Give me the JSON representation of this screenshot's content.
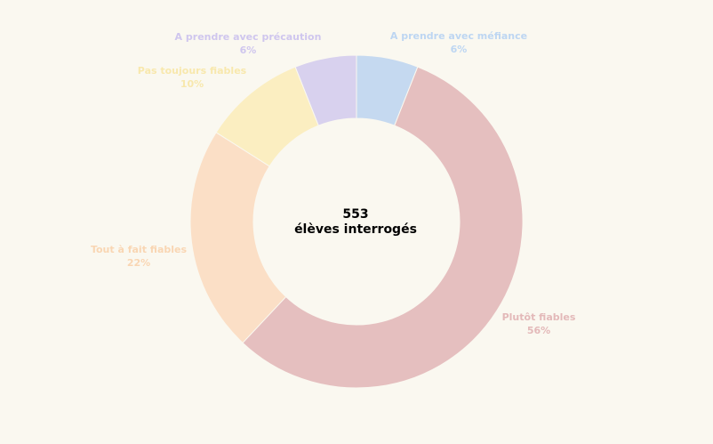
{
  "chart_data": {
    "type": "pie",
    "variant": "donut",
    "center": {
      "value": "553",
      "caption": "élèves interrogés"
    },
    "slices": [
      {
        "label": "A prendre avec méfiance",
        "value": 6,
        "display": "6%",
        "color": "#c5d9f0",
        "label_color": "#bdd6f2"
      },
      {
        "label": "Plutôt fiables",
        "value": 56,
        "display": "56%",
        "color": "#e5bfbf",
        "label_color": "#e3b9b9"
      },
      {
        "label": "Tout à fait fiables",
        "value": 22,
        "display": "22%",
        "color": "#fbdfc6",
        "label_color": "#f9d6b3"
      },
      {
        "label": "Pas toujours fiables",
        "value": 10,
        "display": "10%",
        "color": "#fbeec1",
        "label_color": "#f8e8ad"
      },
      {
        "label": "A prendre avec précaution",
        "value": 6,
        "display": "6%",
        "color": "#d8d1ee",
        "label_color": "#cfc6ee"
      }
    ]
  }
}
